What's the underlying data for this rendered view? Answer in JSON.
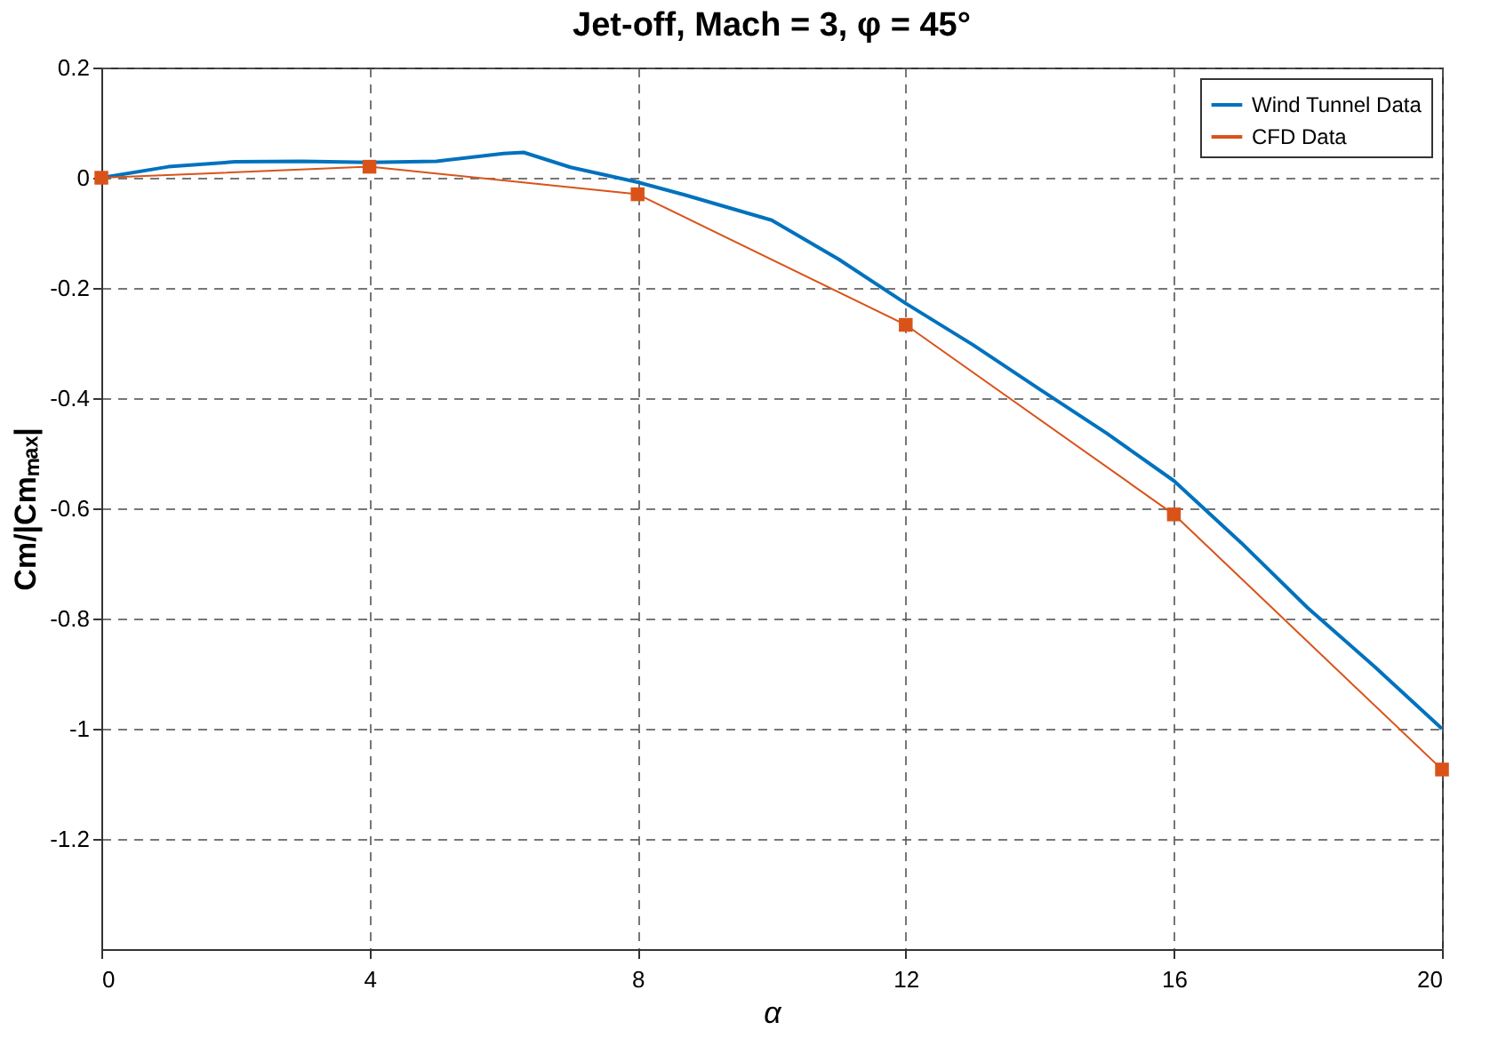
{
  "chart_data": {
    "type": "line",
    "title": "Jet-off, Mach = 3, φ = 45°",
    "xlabel": "α",
    "ylabel": "Cm/|Cmₘₐₓ|",
    "xlim": [
      0,
      20
    ],
    "xticks": [
      0,
      4,
      8,
      12,
      16,
      20
    ],
    "ylim": [
      -1.4,
      0.2
    ],
    "yticks": [
      0.2,
      0,
      -0.2,
      -0.4,
      -0.6,
      -0.8,
      -1,
      -1.2
    ],
    "grid": true,
    "legend": "top right",
    "series": [
      {
        "name": "Wind Tunnel Data",
        "color": "#0072bd",
        "marker": "none",
        "x": [
          0,
          1,
          2,
          3,
          4,
          5,
          6,
          6.3,
          7,
          8,
          8.7,
          10,
          11,
          12,
          13,
          14,
          15,
          16,
          17,
          18,
          19,
          20
        ],
        "values": [
          0,
          0.02,
          0.029,
          0.03,
          0.028,
          0.03,
          0.044,
          0.046,
          0.019,
          -0.008,
          -0.031,
          -0.077,
          -0.148,
          -0.228,
          -0.303,
          -0.384,
          -0.464,
          -0.55,
          -0.662,
          -0.781,
          -0.888,
          -1.0
        ]
      },
      {
        "name": "CFD Data",
        "color": "#d95319",
        "marker": "square",
        "x": [
          0,
          4,
          8,
          12,
          16,
          20
        ],
        "values": [
          0,
          0.02,
          -0.03,
          -0.267,
          -0.611,
          -1.074
        ]
      }
    ]
  }
}
